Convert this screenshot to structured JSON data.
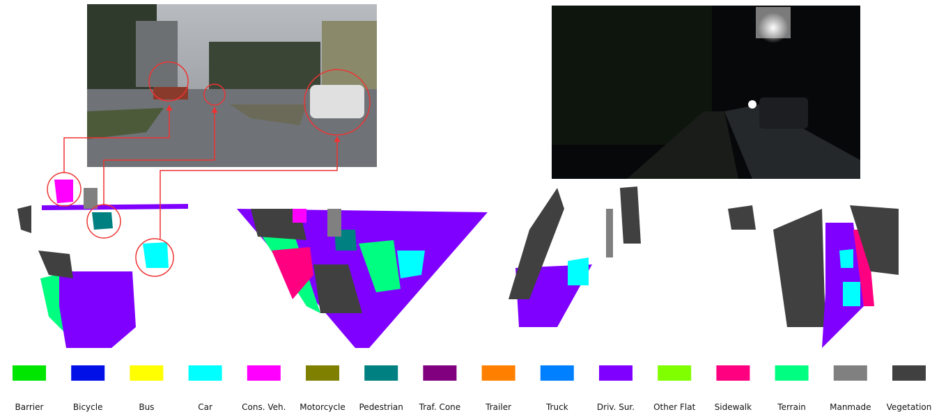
{
  "legend": {
    "items": [
      {
        "name": "Barrier",
        "color": "#00e600"
      },
      {
        "name": "Bicycle",
        "color": "#0010e6"
      },
      {
        "name": "Bus",
        "color": "#ffff00"
      },
      {
        "name": "Car",
        "color": "#00ffff"
      },
      {
        "name": "Cons. Veh.",
        "color": "#ff00ff"
      },
      {
        "name": "Motorcycle",
        "color": "#808000"
      },
      {
        "name": "Pedestrian",
        "color": "#008080"
      },
      {
        "name": "Traf. Cone",
        "color": "#800080"
      },
      {
        "name": "Trailer",
        "color": "#ff8000"
      },
      {
        "name": "Truck",
        "color": "#0080ff"
      },
      {
        "name": "Driv. Sur.",
        "color": "#8000ff"
      },
      {
        "name": "Other Flat",
        "color": "#80ff00"
      },
      {
        "name": "Sidewalk",
        "color": "#ff0080"
      },
      {
        "name": "Terrain",
        "color": "#00ff80"
      },
      {
        "name": "Manmade",
        "color": "#808080"
      },
      {
        "name": "Vegetation",
        "color": "#404040"
      }
    ]
  }
}
